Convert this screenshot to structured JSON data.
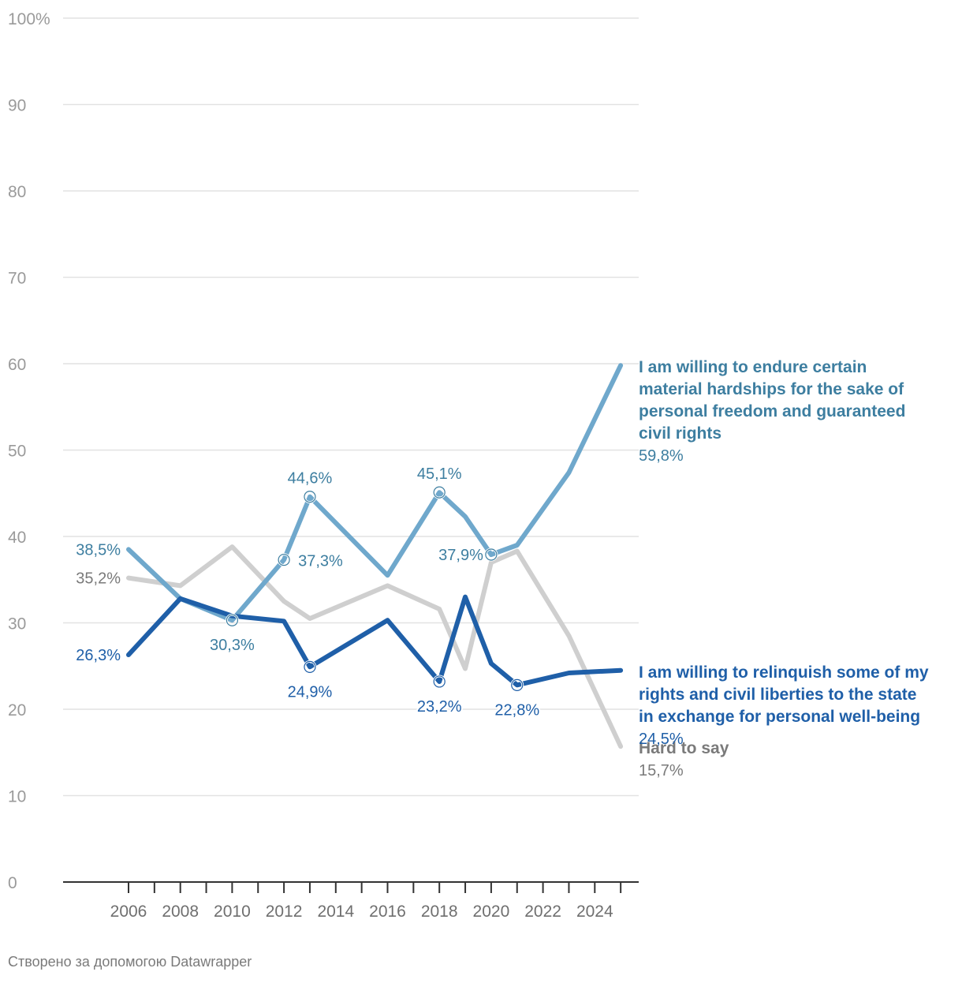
{
  "footer": "Створено за допомогою Datawrapper",
  "colors": {
    "freedom": "#6fa8cc",
    "freedom_text": "#3d7ea0",
    "relinquish": "#1f5fa8",
    "hard": "#cfcfcf",
    "hard_text": "#7a7a7a",
    "grid": "#e2e2e2",
    "axis": "#333333"
  },
  "chart_data": {
    "type": "line",
    "title": "",
    "xlabel": "",
    "ylabel": "",
    "ylim": [
      0,
      100
    ],
    "xlim": [
      2003.5,
      2025.5
    ],
    "y_ticks": [
      {
        "value": 0,
        "label": "0"
      },
      {
        "value": 10,
        "label": "10"
      },
      {
        "value": 20,
        "label": "20"
      },
      {
        "value": 30,
        "label": "30"
      },
      {
        "value": 40,
        "label": "40"
      },
      {
        "value": 50,
        "label": "50"
      },
      {
        "value": 60,
        "label": "60"
      },
      {
        "value": 70,
        "label": "70"
      },
      {
        "value": 80,
        "label": "80"
      },
      {
        "value": 90,
        "label": "90"
      },
      {
        "value": 100,
        "label": "100%"
      }
    ],
    "x_major_ticks": [
      {
        "value": 2006,
        "label": "2006"
      },
      {
        "value": 2008,
        "label": "2008"
      },
      {
        "value": 2010,
        "label": "2010"
      },
      {
        "value": 2012,
        "label": "2012"
      },
      {
        "value": 2014,
        "label": "2014"
      },
      {
        "value": 2016,
        "label": "2016"
      },
      {
        "value": 2018,
        "label": "2018"
      },
      {
        "value": 2020,
        "label": "2020"
      },
      {
        "value": 2022,
        "label": "2022"
      },
      {
        "value": 2024,
        "label": "2024"
      }
    ],
    "x_minor_ticks": [
      2007,
      2009,
      2011,
      2013,
      2015,
      2017,
      2019,
      2021,
      2023,
      2025
    ],
    "series": [
      {
        "key": "freedom",
        "name_lines": [
          "I am willing to endure certain",
          "material hardships for the sake of",
          "personal freedom and guaranteed",
          "civil rights"
        ],
        "end_label": "59,8%",
        "points": [
          [
            2006,
            38.5
          ],
          [
            2008,
            32.8
          ],
          [
            2010,
            30.3
          ],
          [
            2012,
            37.3
          ],
          [
            2013,
            44.6
          ],
          [
            2016,
            35.5
          ],
          [
            2018,
            45.1
          ],
          [
            2019,
            42.3
          ],
          [
            2020,
            37.9
          ],
          [
            2021,
            39.0
          ],
          [
            2023,
            47.4
          ],
          [
            2025,
            59.8
          ]
        ],
        "labels": [
          {
            "x": 2006,
            "y": 38.5,
            "text": "38,5%",
            "pos": "left",
            "marker": false
          },
          {
            "x": 2010,
            "y": 30.3,
            "text": "30,3%",
            "pos": "below",
            "marker": true
          },
          {
            "x": 2012,
            "y": 37.3,
            "text": "37,3%",
            "pos": "right",
            "marker": true
          },
          {
            "x": 2013,
            "y": 44.6,
            "text": "44,6%",
            "pos": "above",
            "marker": true
          },
          {
            "x": 2018,
            "y": 45.1,
            "text": "45,1%",
            "pos": "above",
            "marker": true
          },
          {
            "x": 2020,
            "y": 37.9,
            "text": "37,9%",
            "pos": "left",
            "marker": true
          }
        ]
      },
      {
        "key": "hard",
        "name_lines": [
          "Hard to say"
        ],
        "end_label": "15,7%",
        "points": [
          [
            2006,
            35.2
          ],
          [
            2008,
            34.3
          ],
          [
            2010,
            38.8
          ],
          [
            2012,
            32.5
          ],
          [
            2013,
            30.5
          ],
          [
            2016,
            34.3
          ],
          [
            2018,
            31.6
          ],
          [
            2019,
            24.7
          ],
          [
            2020,
            37.0
          ],
          [
            2021,
            38.3
          ],
          [
            2023,
            28.5
          ],
          [
            2025,
            15.7
          ]
        ],
        "labels": [
          {
            "x": 2006,
            "y": 35.2,
            "text": "35,2%",
            "pos": "left",
            "marker": false
          }
        ]
      },
      {
        "key": "relinquish",
        "name_lines": [
          "I am willing to relinquish some of my",
          "rights and civil liberties to the state",
          "in exchange for personal well-being"
        ],
        "end_label": "24,5%",
        "points": [
          [
            2006,
            26.3
          ],
          [
            2008,
            32.8
          ],
          [
            2010,
            30.8
          ],
          [
            2012,
            30.2
          ],
          [
            2013,
            24.9
          ],
          [
            2016,
            30.3
          ],
          [
            2018,
            23.2
          ],
          [
            2019,
            33.0
          ],
          [
            2020,
            25.3
          ],
          [
            2021,
            22.8
          ],
          [
            2023,
            24.2
          ],
          [
            2025,
            24.5
          ]
        ],
        "labels": [
          {
            "x": 2006,
            "y": 26.3,
            "text": "26,3%",
            "pos": "left",
            "marker": false
          },
          {
            "x": 2013,
            "y": 24.9,
            "text": "24,9%",
            "pos": "below",
            "marker": true
          },
          {
            "x": 2018,
            "y": 23.2,
            "text": "23,2%",
            "pos": "below",
            "marker": true
          },
          {
            "x": 2021,
            "y": 22.8,
            "text": "22,8%",
            "pos": "below",
            "marker": true
          }
        ]
      }
    ]
  }
}
